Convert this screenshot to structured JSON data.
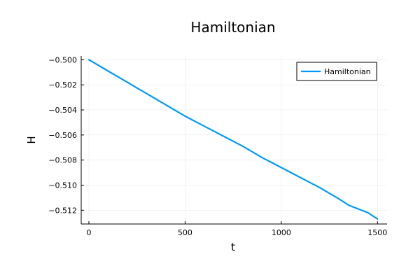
{
  "chart_data": {
    "type": "line",
    "title": "Hamiltonian",
    "xlabel": "t",
    "ylabel": "H",
    "xlim": [
      -40,
      1550
    ],
    "ylim": [
      -0.5131,
      -0.4997
    ],
    "xticks": [
      0,
      500,
      1000,
      1500
    ],
    "xtick_labels": [
      "0",
      "500",
      "1000",
      "1500"
    ],
    "yticks": [
      -0.512,
      -0.51,
      -0.508,
      -0.506,
      -0.504,
      -0.502,
      -0.5
    ],
    "ytick_labels": [
      "−0.512",
      "−0.510",
      "−0.508",
      "−0.506",
      "−0.504",
      "−0.502",
      "−0.500"
    ],
    "grid": true,
    "legend_position": "top-right",
    "series": [
      {
        "name": "Hamiltonian",
        "color": "#009AFA",
        "x": [
          0,
          100,
          200,
          300,
          400,
          500,
          600,
          700,
          800,
          900,
          1000,
          1100,
          1200,
          1300,
          1350,
          1400,
          1450,
          1500
        ],
        "y": [
          -0.5,
          -0.5009,
          -0.5018,
          -0.5027,
          -0.5036,
          -0.5045,
          -0.5053,
          -0.5061,
          -0.5069,
          -0.5078,
          -0.5086,
          -0.5094,
          -0.5102,
          -0.5111,
          -0.5116,
          -0.5119,
          -0.5122,
          -0.5127
        ]
      }
    ]
  }
}
